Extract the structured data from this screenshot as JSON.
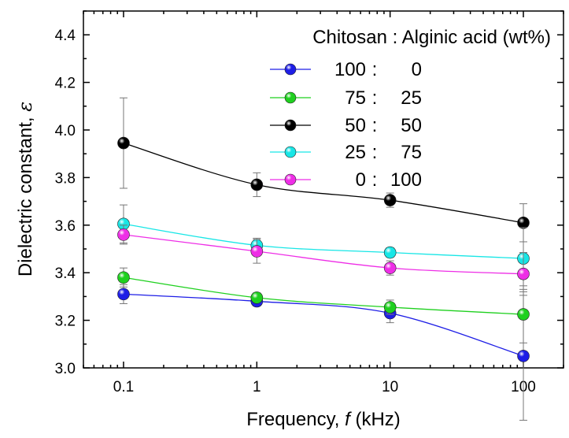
{
  "chart_data": {
    "type": "line",
    "title": "",
    "xlabel": "Frequency, ",
    "xlabel_symbol": "f",
    "xlabel_unit": " (kHz)",
    "ylabel": "Dielectric constant, ",
    "ylabel_symbol": "ε",
    "x_scale": "log",
    "xlim": [
      0.05,
      200
    ],
    "ylim": [
      3.0,
      4.5
    ],
    "x_ticks": [
      0.1,
      1,
      10,
      100
    ],
    "x_tick_labels": [
      "0.1",
      "1",
      "10",
      "100"
    ],
    "y_ticks": [
      3.0,
      3.2,
      3.4,
      3.6,
      3.8,
      4.0,
      4.2,
      4.4
    ],
    "y_tick_labels": [
      "3.0",
      "3.2",
      "3.4",
      "3.6",
      "3.8",
      "4.0",
      "4.2",
      "4.4"
    ],
    "grid": false,
    "legend_position": "top-right",
    "legend_header": "Chitosan : Alginic acid (wt%)",
    "x": [
      0.1,
      1,
      10,
      100
    ],
    "series": [
      {
        "name": "100 :    0",
        "color": "#1e1ee6",
        "values": [
          3.31,
          3.28,
          3.23,
          3.05
        ],
        "errors": [
          0.04,
          0.02,
          0.04,
          0.27
        ]
      },
      {
        "name": "75 :  25",
        "color": "#1fd01f",
        "values": [
          3.38,
          3.295,
          3.255,
          3.225
        ],
        "errors": [
          0.04,
          0.02,
          0.03,
          0.12
        ]
      },
      {
        "name": "50 :  50",
        "color": "#000000",
        "values": [
          3.945,
          3.77,
          3.705,
          3.61
        ],
        "errors": [
          0.19,
          0.05,
          0.03,
          0.08
        ]
      },
      {
        "name": "25 :  75",
        "color": "#18e6e6",
        "values": [
          3.605,
          3.515,
          3.485,
          3.46
        ],
        "errors": [
          0.08,
          0.03,
          0.02,
          0.13
        ]
      },
      {
        "name": "0 : 100",
        "color": "#ee2ee6",
        "values": [
          3.56,
          3.49,
          3.42,
          3.395
        ],
        "errors": [
          0.04,
          0.05,
          0.03,
          0.09
        ]
      }
    ]
  }
}
